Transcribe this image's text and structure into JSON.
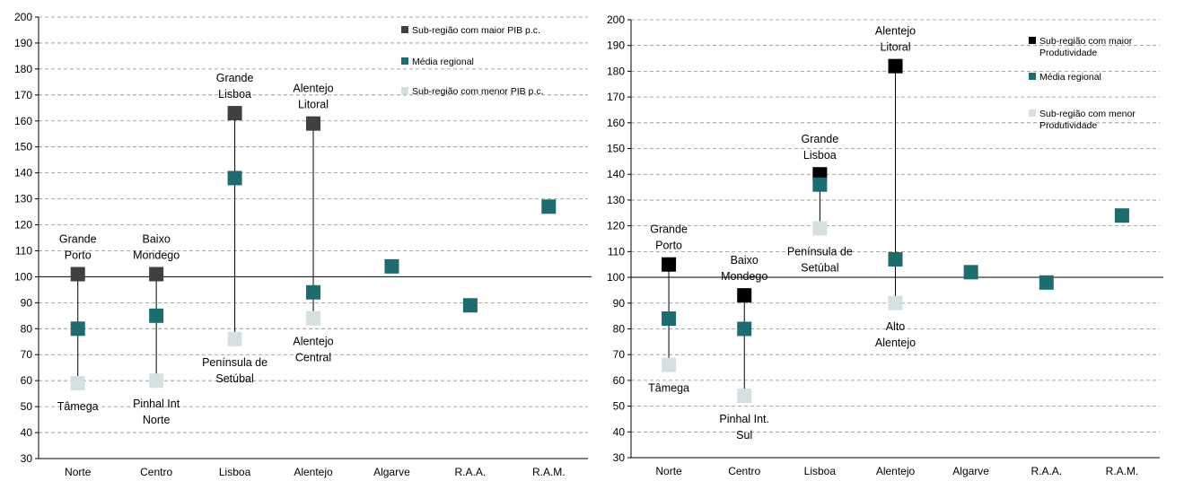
{
  "chart_data": [
    {
      "type": "scatter",
      "title": "",
      "xlabel": "",
      "ylabel": "",
      "ylim": [
        30,
        200
      ],
      "ystep": 10,
      "grid": true,
      "legend_position": "top-right",
      "categories": [
        "Norte",
        "Centro",
        "Lisboa",
        "Alentejo",
        "Algarve",
        "R.A.A.",
        "R.A.M."
      ],
      "series": [
        {
          "name": "Sub-região com maior PIB p.c.",
          "color": "#404040",
          "values": [
            101,
            101,
            163,
            159,
            null,
            null,
            null
          ]
        },
        {
          "name": "Média regional",
          "color": "#1e6b70",
          "values": [
            80,
            85,
            138,
            94,
            104,
            89,
            127
          ]
        },
        {
          "name": "Sub-região com menor PIB p.c.",
          "color": "#d5e1e1",
          "values": [
            59,
            60,
            76,
            84,
            null,
            null,
            null
          ]
        }
      ],
      "annotations": [
        {
          "category": "Norte",
          "lines": [
            "Grande",
            "Porto"
          ],
          "anchor_value": 101,
          "placement": "above"
        },
        {
          "category": "Norte",
          "lines": [
            "Tâmega"
          ],
          "anchor_value": 59,
          "placement": "below"
        },
        {
          "category": "Centro",
          "lines": [
            "Baixo",
            "Mondego"
          ],
          "anchor_value": 101,
          "placement": "above"
        },
        {
          "category": "Centro",
          "lines": [
            "Pinhal Int",
            "Norte"
          ],
          "anchor_value": 60,
          "placement": "below"
        },
        {
          "category": "Lisboa",
          "lines": [
            "Grande",
            "Lisboa"
          ],
          "anchor_value": 163,
          "placement": "above"
        },
        {
          "category": "Lisboa",
          "lines": [
            "Península de",
            "Setúbal"
          ],
          "anchor_value": 76,
          "placement": "below"
        },
        {
          "category": "Alentejo",
          "lines": [
            "Alentejo",
            "Litoral"
          ],
          "anchor_value": 159,
          "placement": "above"
        },
        {
          "category": "Alentejo",
          "lines": [
            "Alentejo",
            "Central"
          ],
          "anchor_value": 84,
          "placement": "below"
        }
      ]
    },
    {
      "type": "scatter",
      "title": "",
      "xlabel": "",
      "ylabel": "",
      "ylim": [
        30,
        200
      ],
      "ystep": 10,
      "grid": true,
      "legend_position": "top-right",
      "categories": [
        "Norte",
        "Centro",
        "Lisboa",
        "Alentejo",
        "Algarve",
        "R.A.A.",
        "R.A.M."
      ],
      "series": [
        {
          "name": "Sub-região com maior Produtividade",
          "color": "#000000",
          "values": [
            105,
            93,
            140,
            182,
            null,
            null,
            null
          ]
        },
        {
          "name": "Média regional",
          "color": "#1e6b70",
          "values": [
            84,
            80,
            136,
            107,
            102,
            98,
            124
          ]
        },
        {
          "name": "Sub-região com menor Produtividade",
          "color": "#d5e1e1",
          "values": [
            66,
            54,
            119,
            90,
            null,
            null,
            null
          ]
        }
      ],
      "annotations": [
        {
          "category": "Norte",
          "lines": [
            "Grande",
            "Porto"
          ],
          "anchor_value": 105,
          "placement": "above"
        },
        {
          "category": "Norte",
          "lines": [
            "Tâmega"
          ],
          "anchor_value": 66,
          "placement": "below"
        },
        {
          "category": "Centro",
          "lines": [
            "Baixo",
            "Mondego"
          ],
          "anchor_value": 93,
          "placement": "above"
        },
        {
          "category": "Centro",
          "lines": [
            "Pinhal Int.",
            "Sul"
          ],
          "anchor_value": 54,
          "placement": "below"
        },
        {
          "category": "Lisboa",
          "lines": [
            "Grande",
            "Lisboa"
          ],
          "anchor_value": 140,
          "placement": "above"
        },
        {
          "category": "Lisboa",
          "lines": [
            "Península de",
            "Setúbal"
          ],
          "anchor_value": 119,
          "placement": "below"
        },
        {
          "category": "Alentejo",
          "lines": [
            "Alentejo",
            "Litoral"
          ],
          "anchor_value": 182,
          "placement": "above"
        },
        {
          "category": "Alentejo",
          "lines": [
            "Alto",
            "Alentejo"
          ],
          "anchor_value": 90,
          "placement": "below"
        }
      ]
    }
  ]
}
